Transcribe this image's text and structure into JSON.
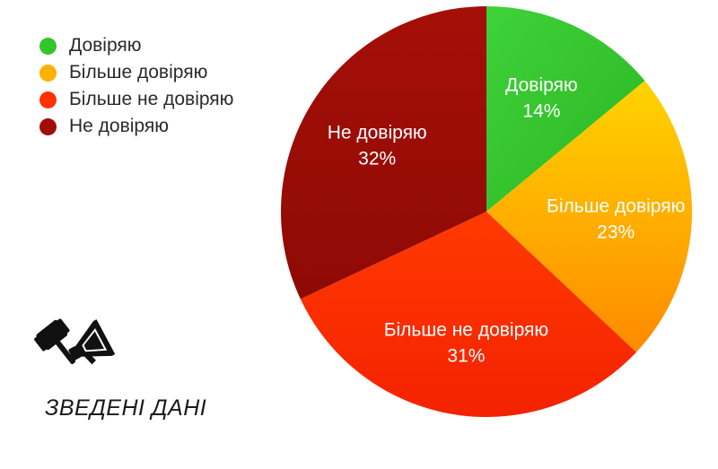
{
  "chart_data": {
    "type": "pie",
    "title": "",
    "legend_position": "top-left",
    "slices": [
      {
        "label": "Довіряю",
        "value": 14,
        "display": "14%",
        "color": "#33c62b"
      },
      {
        "label": "Більше довіряю",
        "value": 23,
        "display": "23%",
        "color": "#ffb000"
      },
      {
        "label": "Більше не довіряю",
        "value": 31,
        "display": "31%",
        "color": "#ff3300"
      },
      {
        "label": "Не довіряю",
        "value": 32,
        "display": "32%",
        "color": "#a30d07"
      }
    ]
  },
  "legend": {
    "items": [
      {
        "label": "Довіряю",
        "color": "#33c62b"
      },
      {
        "label": "Більше довіряю",
        "color": "#ffb000"
      },
      {
        "label": "Більше не довіряю",
        "color": "#ff3300"
      },
      {
        "label": "Не довіряю",
        "color": "#a30d07"
      }
    ]
  },
  "brand": {
    "text": "ЗВЕДЕНІ ДАНІ",
    "icon": "gavel-megaphone-icon"
  }
}
